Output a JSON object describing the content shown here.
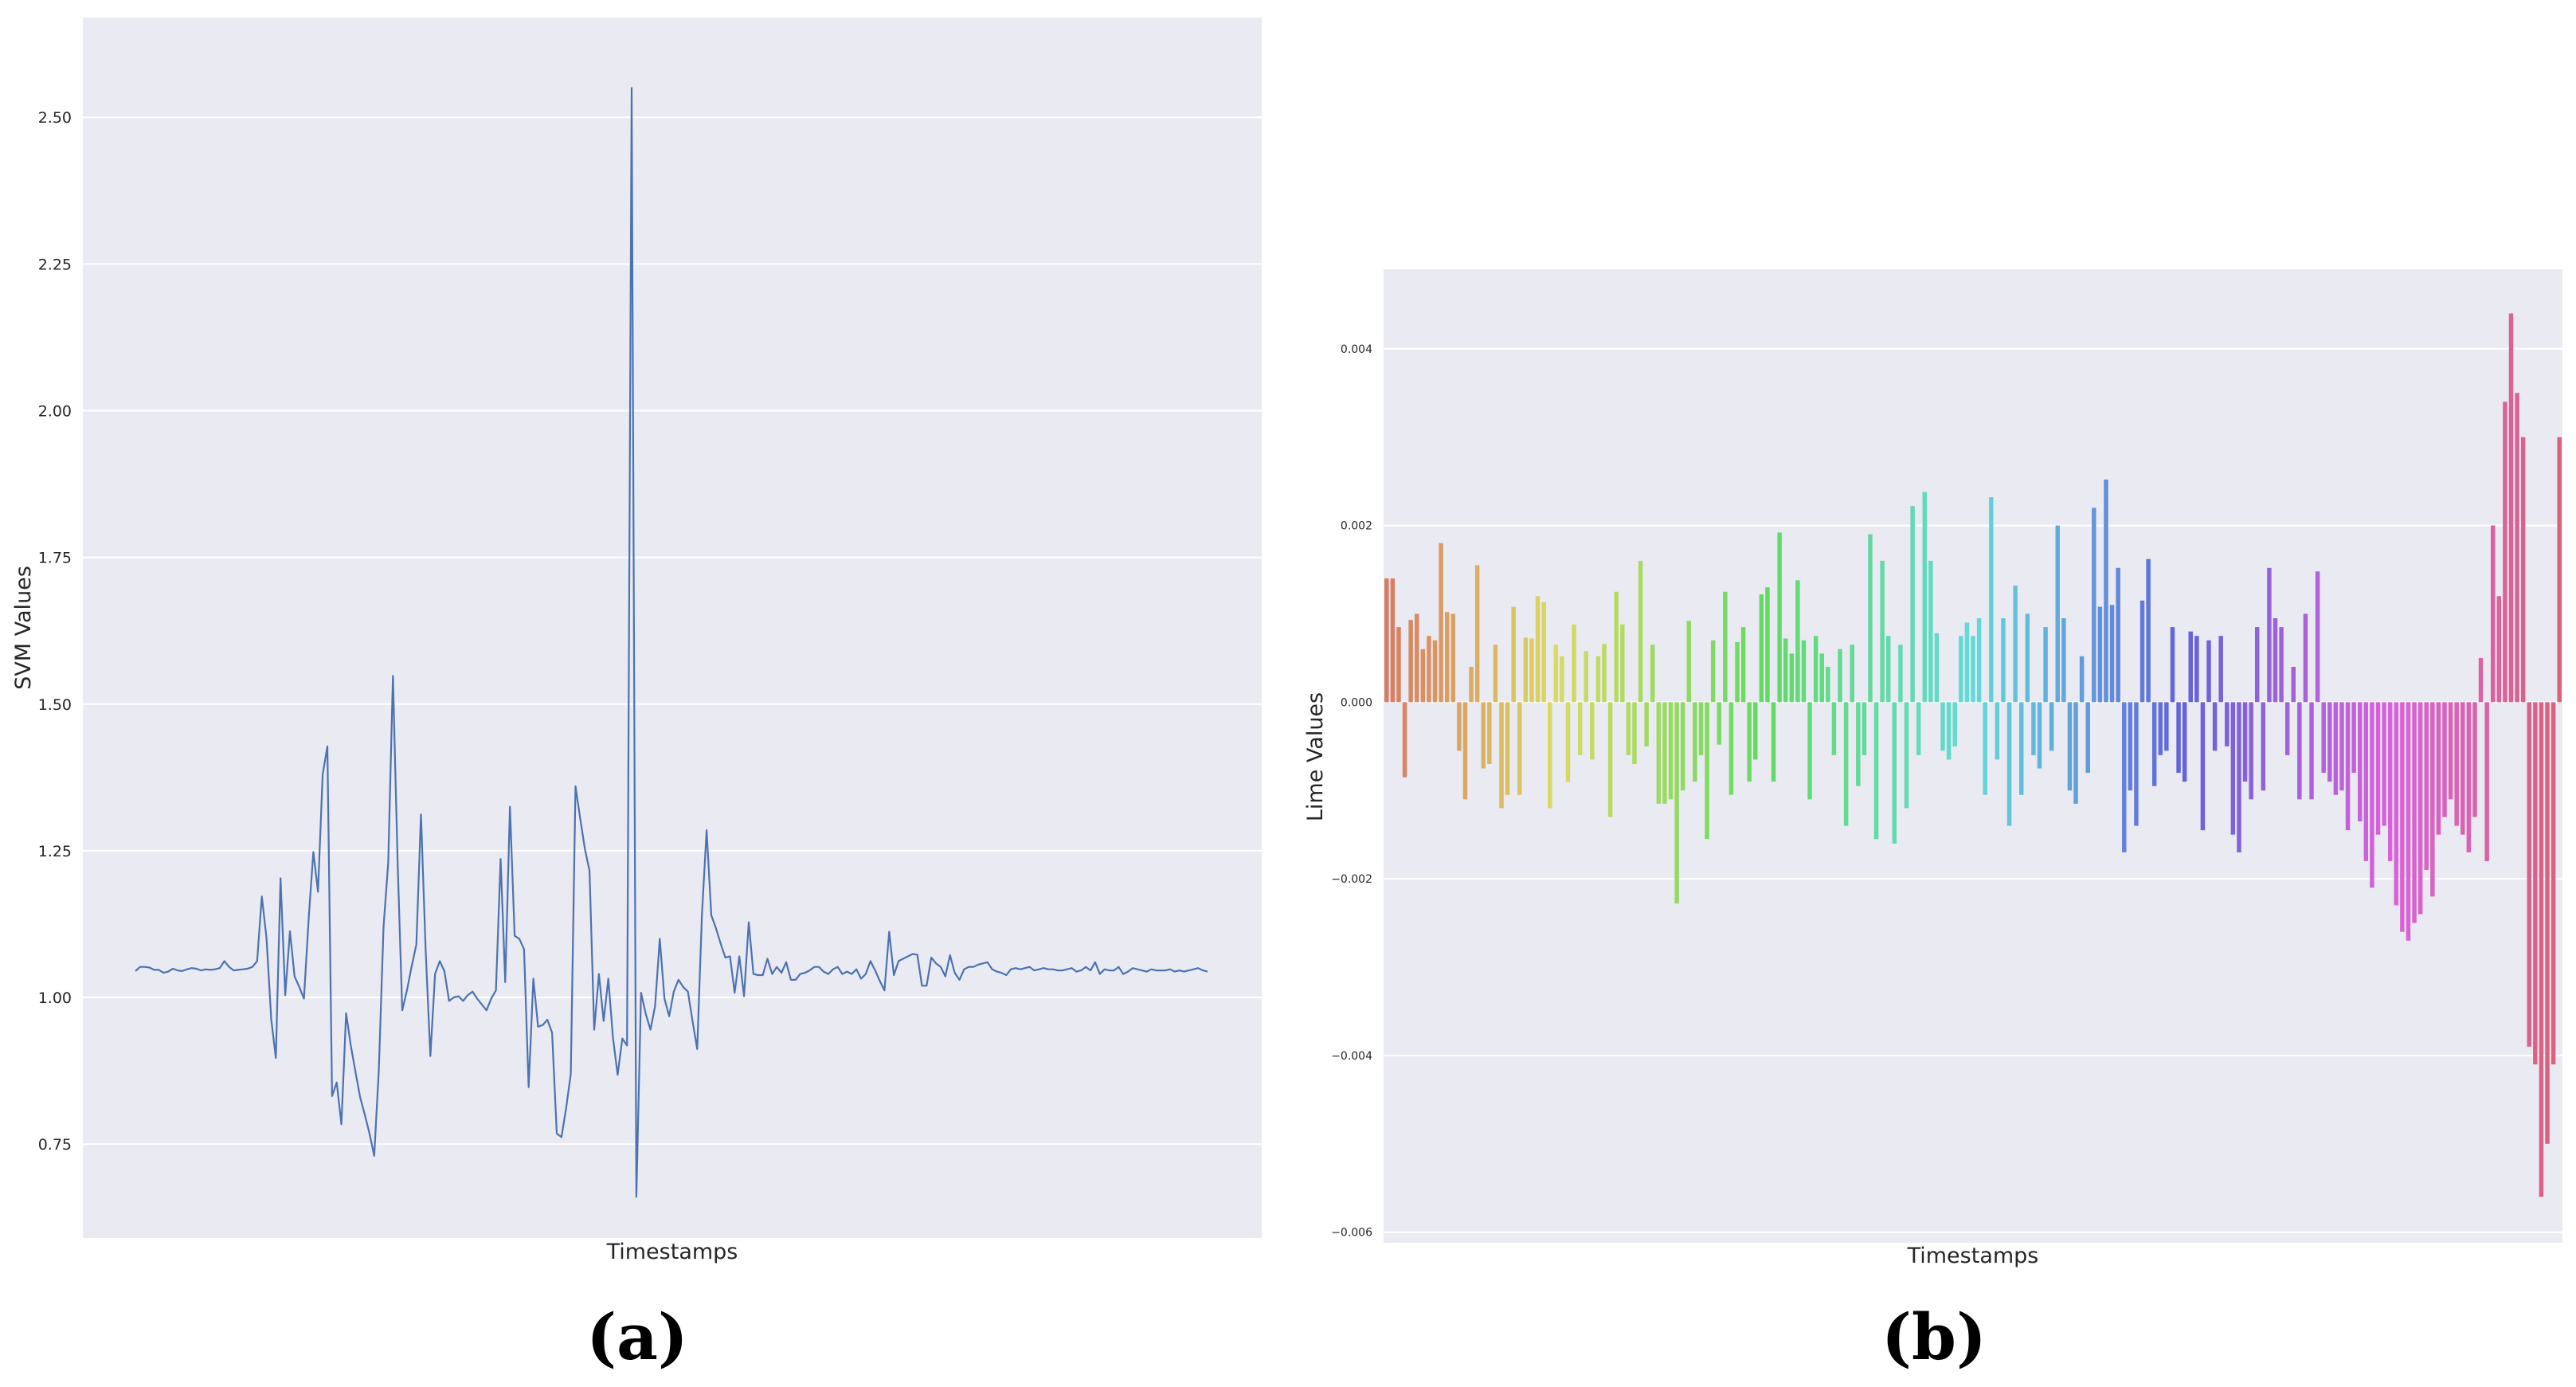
{
  "chart_data": [
    {
      "type": "line",
      "panel_label": "(a)",
      "xlabel": "Timestamps",
      "ylabel": "SVM Values",
      "ylim": [
        0.59,
        2.67
      ],
      "yticks": [
        0.75,
        1.0,
        1.25,
        1.5,
        1.75,
        2.0,
        2.25,
        2.5
      ],
      "ytick_labels": [
        "0.75",
        "1.00",
        "1.25",
        "1.50",
        "1.75",
        "2.00",
        "2.25",
        "2.50"
      ],
      "x_tick_labels_shown": false,
      "grid": true,
      "legend": "none",
      "series": [
        {
          "color": "#4c72b0",
          "values": [
            1.045,
            1.052,
            1.052,
            1.051,
            1.047,
            1.047,
            1.042,
            1.044,
            1.049,
            1.046,
            1.045,
            1.048,
            1.05,
            1.049,
            1.046,
            1.048,
            1.047,
            1.048,
            1.05,
            1.062,
            1.052,
            1.046,
            1.047,
            1.048,
            1.049,
            1.052,
            1.062,
            1.172,
            1.101,
            0.963,
            0.897,
            1.203,
            1.004,
            1.113,
            1.036,
            1.018,
            0.998,
            1.134,
            1.248,
            1.18,
            1.38,
            1.428,
            0.832,
            0.855,
            0.784,
            0.973,
            0.918,
            0.873,
            0.83,
            0.8,
            0.768,
            0.73,
            0.877,
            1.12,
            1.23,
            1.548,
            1.23,
            0.978,
            1.012,
            1.053,
            1.09,
            1.312,
            1.08,
            0.9,
            1.04,
            1.062,
            1.045,
            0.994,
            1.0,
            1.002,
            0.994,
            1.004,
            1.01,
            0.998,
            0.988,
            0.978,
            0.998,
            1.012,
            1.236,
            1.026,
            1.325,
            1.105,
            1.1,
            1.082,
            0.847,
            1.032,
            0.95,
            0.953,
            0.962,
            0.94,
            0.768,
            0.762,
            0.812,
            0.87,
            1.36,
            1.305,
            1.253,
            1.216,
            0.945,
            1.04,
            0.96,
            1.032,
            0.932,
            0.868,
            0.93,
            0.918,
            2.55,
            0.66,
            1.008,
            0.972,
            0.945,
            0.985,
            1.1,
            0.998,
            0.968,
            1.01,
            1.03,
            1.018,
            1.01,
            0.96,
            0.912,
            1.14,
            1.285,
            1.14,
            1.118,
            1.092,
            1.068,
            1.07,
            1.008,
            1.07,
            1.002,
            1.128,
            1.04,
            1.038,
            1.038,
            1.066,
            1.04,
            1.052,
            1.042,
            1.06,
            1.03,
            1.03,
            1.04,
            1.042,
            1.046,
            1.052,
            1.052,
            1.044,
            1.04,
            1.048,
            1.052,
            1.04,
            1.044,
            1.04,
            1.048,
            1.032,
            1.04,
            1.062,
            1.046,
            1.028,
            1.012,
            1.112,
            1.038,
            1.062,
            1.066,
            1.07,
            1.074,
            1.073,
            1.02,
            1.02,
            1.068,
            1.058,
            1.052,
            1.036,
            1.072,
            1.042,
            1.03,
            1.048,
            1.052,
            1.052,
            1.056,
            1.058,
            1.06,
            1.048,
            1.044,
            1.042,
            1.038,
            1.048,
            1.05,
            1.048,
            1.05,
            1.052,
            1.046,
            1.048,
            1.05,
            1.048,
            1.048,
            1.046,
            1.046,
            1.048,
            1.05,
            1.044,
            1.046,
            1.052,
            1.046,
            1.06,
            1.04,
            1.048,
            1.046,
            1.046,
            1.052,
            1.04,
            1.044,
            1.05,
            1.048,
            1.046,
            1.044,
            1.048,
            1.046,
            1.046,
            1.046,
            1.048,
            1.044,
            1.046,
            1.044,
            1.046,
            1.048,
            1.05,
            1.046,
            1.044
          ]
        }
      ]
    },
    {
      "type": "bar",
      "panel_label": "(b)",
      "xlabel": "Timestamps",
      "ylabel": "Lime Values",
      "ylim": [
        -0.00612,
        0.0049
      ],
      "yticks": [
        -0.006,
        -0.004,
        -0.002,
        0.0,
        0.002,
        0.004
      ],
      "ytick_labels": [
        "−0.006",
        "−0.004",
        "−0.002",
        "0.000",
        "0.002",
        "0.004"
      ],
      "x_tick_labels_shown": false,
      "grid": true,
      "legend": "none",
      "palette": "husl",
      "values": [
        0.0014,
        0.0014,
        0.00085,
        -0.00085,
        0.00093,
        0.001,
        0.0006,
        0.00075,
        0.0007,
        0.0018,
        0.00102,
        0.001,
        -0.00055,
        -0.0011,
        0.0004,
        0.00155,
        -0.00075,
        -0.0007,
        0.00065,
        -0.0012,
        -0.00105,
        0.00108,
        -0.00105,
        0.00073,
        0.00072,
        0.0012,
        0.00113,
        -0.0012,
        0.00065,
        0.00052,
        -0.0009,
        0.00088,
        -0.0006,
        0.00058,
        -0.00065,
        0.00052,
        0.00066,
        -0.0013,
        0.00125,
        0.00088,
        -0.0006,
        -0.0007,
        0.0016,
        -0.0005,
        0.00065,
        -0.00115,
        -0.00115,
        -0.0011,
        -0.00228,
        -0.001,
        0.00092,
        -0.0009,
        -0.0006,
        -0.00155,
        0.0007,
        -0.00048,
        0.00125,
        -0.00105,
        0.00068,
        0.00085,
        -0.0009,
        -0.00065,
        0.00122,
        0.0013,
        -0.0009,
        0.00192,
        0.00072,
        0.00055,
        0.00138,
        0.0007,
        -0.0011,
        0.00075,
        0.00055,
        0.0004,
        -0.0006,
        0.0006,
        -0.0014,
        0.00065,
        -0.00095,
        -0.0006,
        0.0019,
        -0.00155,
        0.0016,
        0.00075,
        -0.0016,
        0.00065,
        -0.0012,
        0.00222,
        -0.0006,
        0.00238,
        0.0016,
        0.00078,
        -0.00055,
        -0.00065,
        -0.0005,
        0.00075,
        0.0009,
        0.00075,
        0.00095,
        -0.00105,
        0.00232,
        -0.00065,
        0.00095,
        -0.0014,
        0.00132,
        -0.00105,
        0.001,
        -0.0006,
        -0.00075,
        0.00085,
        -0.00055,
        0.002,
        0.00095,
        -0.001,
        -0.00115,
        0.00052,
        -0.0008,
        0.0022,
        0.00108,
        0.00252,
        0.0011,
        0.00152,
        -0.0017,
        -0.001,
        -0.0014,
        0.00115,
        0.00162,
        -0.00095,
        -0.0006,
        -0.00055,
        0.00085,
        -0.0008,
        -0.0009,
        0.0008,
        0.00075,
        -0.00145,
        0.0007,
        -0.00055,
        0.00075,
        -0.0005,
        -0.0015,
        -0.0017,
        -0.0009,
        -0.0011,
        0.00085,
        -0.001,
        0.00152,
        0.00095,
        0.00085,
        -0.0006,
        0.0004,
        -0.0011,
        0.001,
        -0.0011,
        0.00148,
        -0.0008,
        -0.0009,
        -0.00105,
        -0.001,
        -0.00145,
        -0.0008,
        -0.00135,
        -0.0018,
        -0.0021,
        -0.0015,
        -0.0014,
        -0.0018,
        -0.0023,
        -0.0026,
        -0.0027,
        -0.0025,
        -0.0024,
        -0.0019,
        -0.0022,
        -0.0015,
        -0.0013,
        -0.0011,
        -0.0014,
        -0.0015,
        -0.0017,
        -0.0013,
        0.0005,
        -0.0018,
        0.002,
        0.0012,
        0.0034,
        0.0044,
        0.0035,
        0.003,
        -0.0039,
        -0.0041,
        -0.0056,
        -0.005,
        -0.0041,
        0.003
      ]
    }
  ]
}
